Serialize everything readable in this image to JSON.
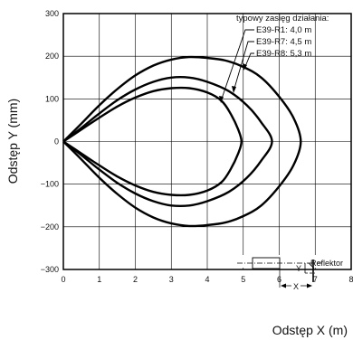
{
  "chart_data": {
    "type": "line",
    "xlabel": "Odstęp X (m)",
    "ylabel": "Odstęp Y (mm)",
    "xlim": [
      0,
      8
    ],
    "ylim": [
      -300,
      300
    ],
    "x_ticks": [
      0,
      1,
      2,
      3,
      4,
      5,
      6,
      7,
      8
    ],
    "y_ticks": [
      300,
      200,
      100,
      0,
      -100,
      -200,
      -300
    ],
    "y_tick_labels": [
      "300",
      "200",
      "100",
      "0",
      "−100",
      "−200",
      "−300"
    ],
    "grid": true,
    "legend": {
      "title": "typowy zasięg działania:",
      "placement": "top-right",
      "entries": [
        "E39-R1:  4,0 m",
        "E39-R7:  4,5 m",
        "E39-R8:  5,3 m"
      ]
    },
    "series": [
      {
        "name": "E39-R1",
        "x": [
          0,
          0.5,
          1.0,
          1.5,
          2.0,
          2.5,
          3.0,
          3.5,
          4.0,
          4.4,
          4.65,
          4.85,
          4.95,
          4.85,
          4.65,
          4.4,
          4.0,
          3.5,
          3.0,
          2.5,
          2.0,
          1.5,
          1.0,
          0.5,
          0
        ],
        "y": [
          0,
          28,
          56,
          82,
          103,
          118,
          125,
          125,
          115,
          95,
          65,
          30,
          0,
          -30,
          -65,
          -95,
          -115,
          -125,
          -125,
          -118,
          -103,
          -82,
          -56,
          -28,
          0
        ]
      },
      {
        "name": "E39-R7",
        "x": [
          0,
          0.5,
          1.0,
          1.5,
          2.0,
          2.5,
          3.0,
          3.5,
          4.0,
          4.6,
          5.1,
          5.5,
          5.8,
          5.5,
          5.1,
          4.6,
          4.0,
          3.5,
          3.0,
          2.5,
          2.0,
          1.5,
          1.0,
          0.5,
          0
        ],
        "y": [
          0,
          32,
          66,
          97,
          122,
          140,
          150,
          150,
          140,
          118,
          85,
          45,
          0,
          -45,
          -85,
          -118,
          -140,
          -150,
          -150,
          -140,
          -122,
          -97,
          -66,
          -32,
          0
        ]
      },
      {
        "name": "E39-R8",
        "x": [
          0,
          0.5,
          1.0,
          1.5,
          2.0,
          2.5,
          3.0,
          3.5,
          4.0,
          4.5,
          5.0,
          5.5,
          6.0,
          6.4,
          6.6,
          6.4,
          6.0,
          5.5,
          5.0,
          4.5,
          4.0,
          3.5,
          3.0,
          2.5,
          2.0,
          1.5,
          1.0,
          0.5,
          0
        ],
        "y": [
          0,
          42,
          85,
          123,
          155,
          178,
          192,
          198,
          196,
          190,
          175,
          150,
          105,
          55,
          0,
          -55,
          -105,
          -150,
          -175,
          -190,
          -196,
          -198,
          -192,
          -178,
          -155,
          -123,
          -85,
          -42,
          0
        ]
      }
    ],
    "inset": {
      "label": "Reflektor",
      "x_label": "X",
      "y_label": "Y"
    }
  }
}
